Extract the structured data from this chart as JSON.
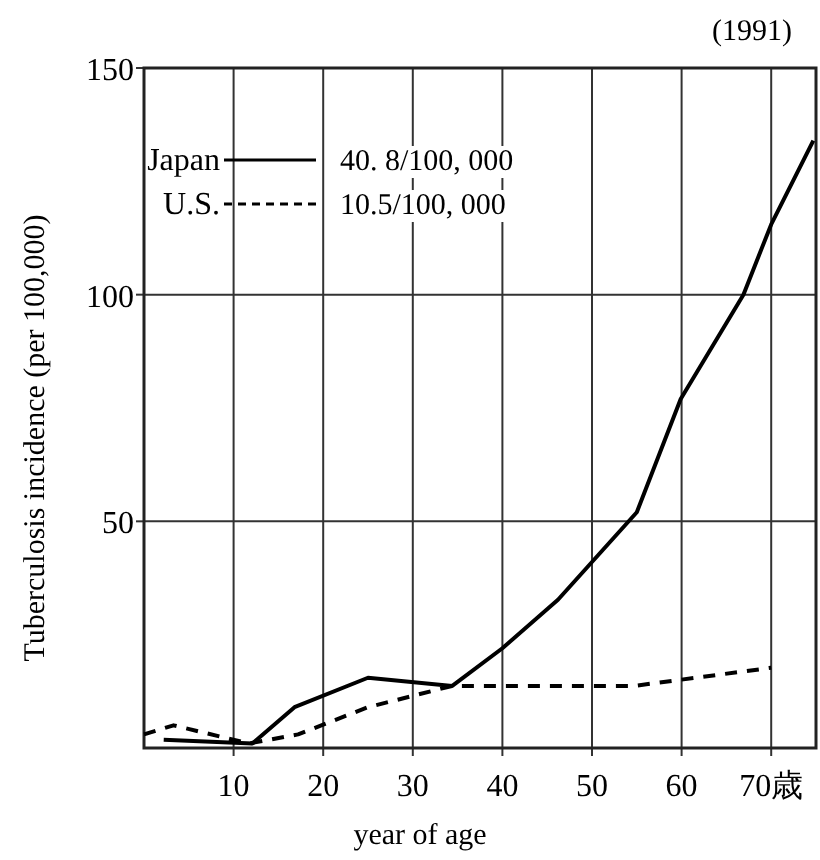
{
  "chart_data": {
    "type": "line",
    "title": "(1991)",
    "xlabel": "year of age",
    "ylabel": "Tuberculosis incidence (per 100,000)",
    "series": [
      {
        "name": "Japan",
        "color": "#000000",
        "line_style": "solid",
        "x": [
          2.2,
          12.1,
          16.8,
          25,
          34.4,
          40,
          46.2,
          55,
          59.9,
          66.9,
          70,
          74.7
        ],
        "values": [
          1.8,
          1,
          9,
          15.5,
          13.7,
          22,
          32.7,
          52,
          77,
          100,
          115.5,
          134
        ]
      },
      {
        "name": "U.S.",
        "color": "#000000",
        "line_style": "dashed",
        "x": [
          0,
          3.3,
          11.7,
          17.2,
          25,
          34.4,
          54.7,
          70
        ],
        "values": [
          3,
          5,
          1,
          3,
          9,
          13.7,
          13.7,
          17.7
        ]
      }
    ],
    "annotations": [
      "40. 8/100, 000",
      "10.5/100, 000"
    ],
    "xlim": [
      0,
      75
    ],
    "ylim": [
      0,
      150
    ],
    "xticks": [
      10,
      20,
      30,
      40,
      50,
      60,
      {
        "value": 70,
        "label": "70歳"
      }
    ],
    "yticks": [
      50,
      100,
      150
    ],
    "grid": true,
    "legend": "top left"
  }
}
